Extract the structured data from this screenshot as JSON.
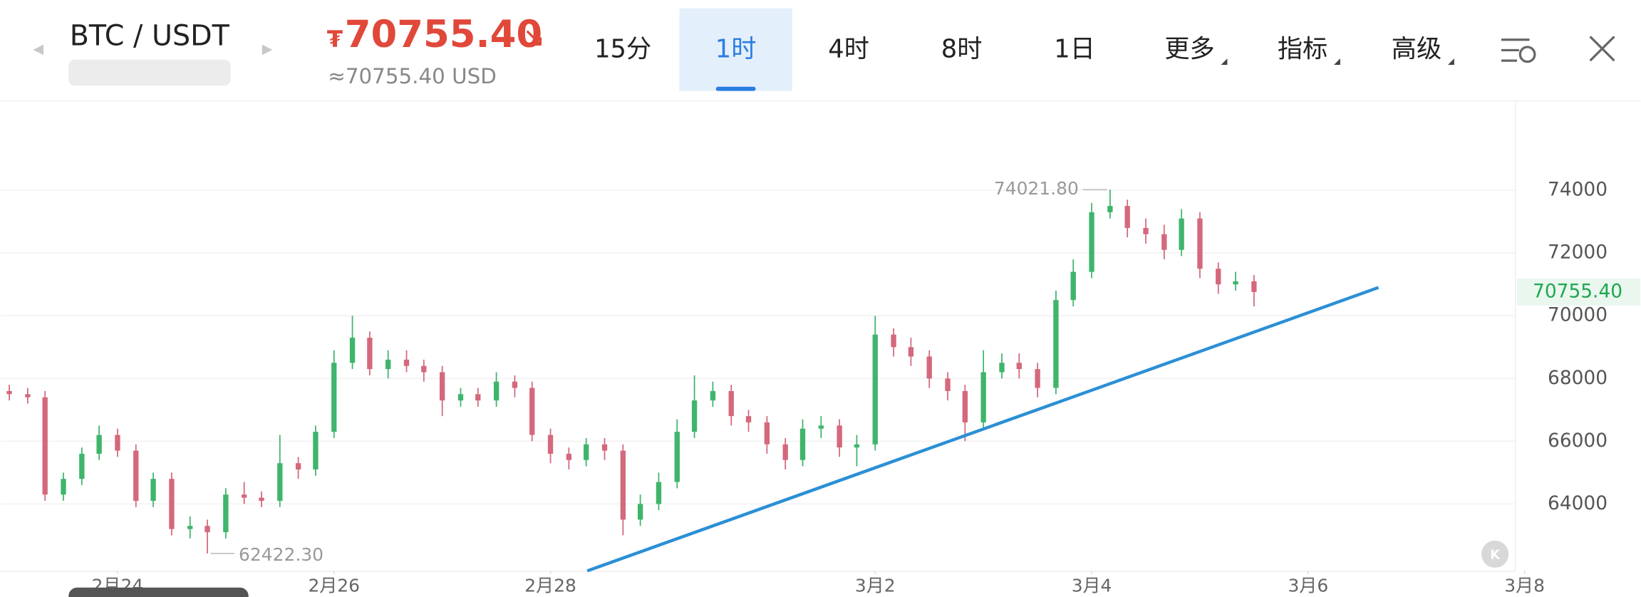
{
  "header": {
    "pair": "BTC / USDT",
    "currency_symbol": "₮",
    "price": "70755.40",
    "usd_price": "≈70755.40 USD",
    "tabs": [
      "15分",
      "1时",
      "4时",
      "8时",
      "1日",
      "更多",
      "指标",
      "高级"
    ],
    "active_tab": 1
  },
  "chart_data": {
    "type": "candlestick",
    "x": [
      23.0,
      23.17,
      23.33,
      23.5,
      23.67,
      23.83,
      24.0,
      24.17,
      24.33,
      24.5,
      24.67,
      24.83,
      25.0,
      25.17,
      25.33,
      25.5,
      25.67,
      25.83,
      26.0,
      26.17,
      26.33,
      26.5,
      26.67,
      26.83,
      27.0,
      27.17,
      27.33,
      27.5,
      27.67,
      27.83,
      28.0,
      28.17,
      28.33,
      28.5,
      28.67,
      28.83,
      29.0,
      29.17,
      29.33,
      29.5,
      29.67,
      29.83,
      30.0,
      30.17,
      30.33,
      30.5,
      30.67,
      30.83,
      31.0,
      31.17,
      31.33,
      31.5,
      31.67,
      31.83,
      32.0,
      32.17,
      32.33,
      32.5,
      32.67,
      32.83,
      33.0,
      33.17,
      33.33,
      33.5,
      33.67,
      33.83,
      34.0,
      34.17,
      34.33,
      34.5
    ],
    "open": [
      67600,
      67500,
      67400,
      64300,
      64800,
      65600,
      66200,
      65700,
      64100,
      64800,
      63200,
      63300,
      63100,
      64300,
      64200,
      64100,
      65300,
      65100,
      66300,
      68500,
      69300,
      68300,
      68600,
      68400,
      68200,
      67300,
      67500,
      67300,
      67900,
      67700,
      66200,
      65600,
      65400,
      65900,
      65700,
      63500,
      64000,
      64700,
      66300,
      67300,
      67600,
      66800,
      66600,
      65900,
      65400,
      66400,
      66500,
      65800,
      65900,
      69400,
      69000,
      68700,
      68000,
      67600,
      66600,
      68200,
      68500,
      68300,
      67700,
      70500,
      71400,
      73300,
      73500,
      72800,
      72600,
      72100,
      73100,
      71500,
      71000,
      71100
    ],
    "high": [
      67800,
      67700,
      67600,
      65000,
      65800,
      66500,
      66400,
      65900,
      65000,
      65000,
      63600,
      63500,
      64500,
      64700,
      64400,
      66200,
      65500,
      66500,
      68900,
      70000,
      69500,
      68900,
      68900,
      68600,
      68400,
      67700,
      67700,
      68200,
      68100,
      67900,
      66400,
      65800,
      66100,
      66100,
      65900,
      64300,
      65000,
      66700,
      68100,
      67900,
      67800,
      67000,
      66800,
      66100,
      66700,
      66800,
      66700,
      66200,
      70000,
      69600,
      69300,
      68900,
      68200,
      67800,
      68900,
      68800,
      68800,
      68500,
      70800,
      71800,
      73600,
      74021.8,
      73700,
      73100,
      72900,
      73400,
      73300,
      71700,
      71400,
      71300
    ],
    "low": [
      67300,
      67200,
      64100,
      64100,
      64600,
      65400,
      65500,
      63900,
      63900,
      63000,
      62900,
      62422.3,
      62900,
      64000,
      63900,
      63900,
      64800,
      64900,
      66100,
      68300,
      68100,
      68000,
      68200,
      67900,
      66800,
      67100,
      67100,
      67100,
      67400,
      66000,
      65300,
      65100,
      65200,
      65400,
      63000,
      63300,
      63800,
      64500,
      66100,
      67100,
      66500,
      66300,
      65600,
      65100,
      65200,
      66100,
      65500,
      65200,
      65700,
      68700,
      68400,
      67700,
      67300,
      66000,
      66400,
      68000,
      68000,
      67400,
      67500,
      70300,
      71200,
      73100,
      72500,
      72300,
      71800,
      71900,
      71200,
      70700,
      70800,
      70300
    ],
    "close": [
      67500,
      67400,
      64300,
      64800,
      65600,
      66200,
      65700,
      64100,
      64800,
      63200,
      63300,
      63100,
      64300,
      64200,
      64100,
      65300,
      65100,
      66300,
      68500,
      69300,
      68300,
      68600,
      68400,
      68200,
      67300,
      67500,
      67300,
      67900,
      67700,
      66200,
      65600,
      65400,
      65900,
      65700,
      63500,
      64000,
      64700,
      66300,
      67300,
      67600,
      66800,
      66600,
      65900,
      65400,
      66400,
      66500,
      65800,
      65900,
      69400,
      69000,
      68700,
      68000,
      67600,
      66600,
      68200,
      68500,
      68300,
      67700,
      70500,
      71400,
      73300,
      73500,
      72800,
      72600,
      72100,
      73100,
      71500,
      71000,
      71100,
      70755.4
    ],
    "up_color": "#3fb56c",
    "down_color": "#d4687c",
    "xlim": [
      22.92,
      36.91
    ],
    "ylim": [
      61867,
      76833
    ],
    "xticks": [
      {
        "value": 24,
        "label": "2月24"
      },
      {
        "value": 26,
        "label": "2月26"
      },
      {
        "value": 28,
        "label": "2月28"
      },
      {
        "value": 31,
        "label": "3月2"
      },
      {
        "value": 33,
        "label": "3月4"
      },
      {
        "value": 35,
        "label": "3月6"
      },
      {
        "value": 37,
        "label": "3月8"
      }
    ],
    "yticks": [
      64000,
      66000,
      68000,
      70000,
      72000,
      74000
    ],
    "grid": true,
    "high_label": {
      "value": 74021.8,
      "label": "74021.80"
    },
    "low_label": {
      "value": 62422.3,
      "label": "62422.30"
    },
    "last_label": {
      "value": 70755.4,
      "label": "70755.40"
    },
    "trendline": {
      "x": [
        28.34,
        35.65
      ],
      "y": [
        61867,
        70900
      ],
      "color": "#2b8fd6"
    }
  }
}
